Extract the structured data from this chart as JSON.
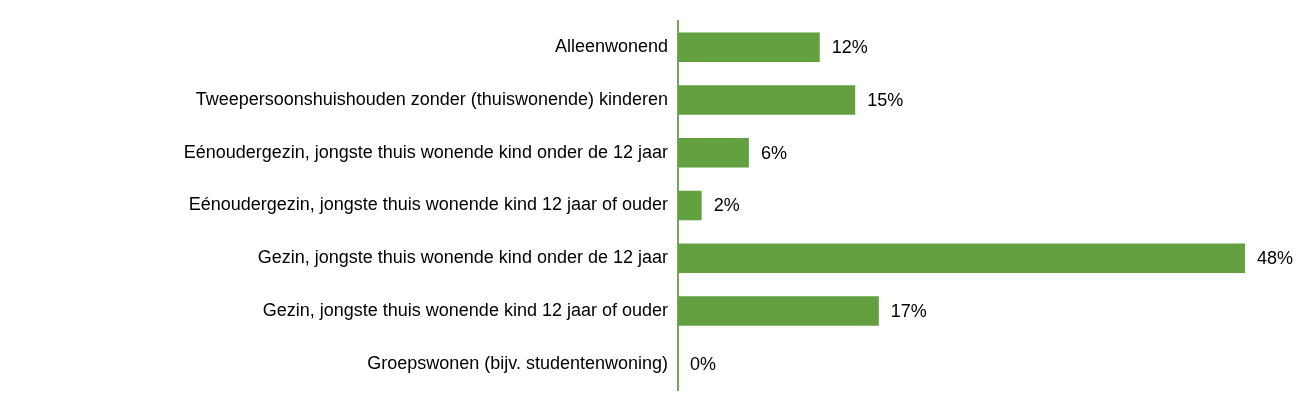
{
  "chart_data": {
    "type": "bar",
    "orientation": "horizontal",
    "categories": [
      "Alleenwonend",
      "Tweepersoonshuishouden zonder (thuiswonende) kinderen",
      "Eénoudergezin, jongste thuis wonende kind onder de 12 jaar",
      "Eénoudergezin, jongste thuis wonende kind 12 jaar of ouder",
      "Gezin, jongste thuis wonende kind onder de 12 jaar",
      "Gezin, jongste thuis wonende kind 12 jaar of ouder",
      "Groepswonen (bijv. studentenwoning)"
    ],
    "values": [
      12,
      15,
      6,
      2,
      48,
      17,
      0
    ],
    "value_labels": [
      "12%",
      "15%",
      "6%",
      "2%",
      "48%",
      "17%",
      "0%"
    ],
    "color": "#63a03f",
    "xlim": [
      0,
      48
    ]
  }
}
